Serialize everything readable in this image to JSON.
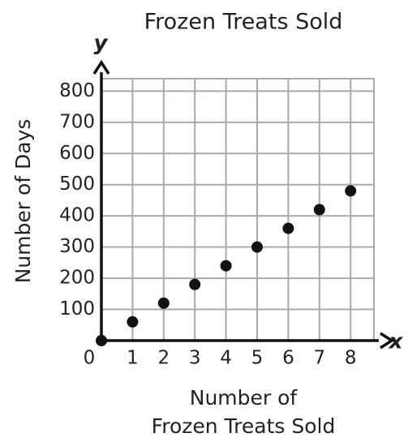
{
  "chart_data": {
    "type": "scatter",
    "title": "Frozen Treats Sold",
    "xlabel": [
      "Number of",
      "Frozen Treats Sold"
    ],
    "ylabel": "Number of Days",
    "xaxis_name": "x",
    "yaxis_name": "y",
    "x": [
      0,
      1,
      2,
      3,
      4,
      5,
      6,
      7,
      8
    ],
    "values": [
      0,
      60,
      120,
      180,
      240,
      300,
      360,
      420,
      480
    ],
    "color": "#111111",
    "xlim": [
      0,
      8.75
    ],
    "ylim": [
      0,
      840
    ],
    "xticks": [
      0,
      1,
      2,
      3,
      4,
      5,
      6,
      7,
      8
    ],
    "yticks": [
      100,
      200,
      300,
      400,
      500,
      600,
      700,
      800
    ],
    "grid": true
  }
}
